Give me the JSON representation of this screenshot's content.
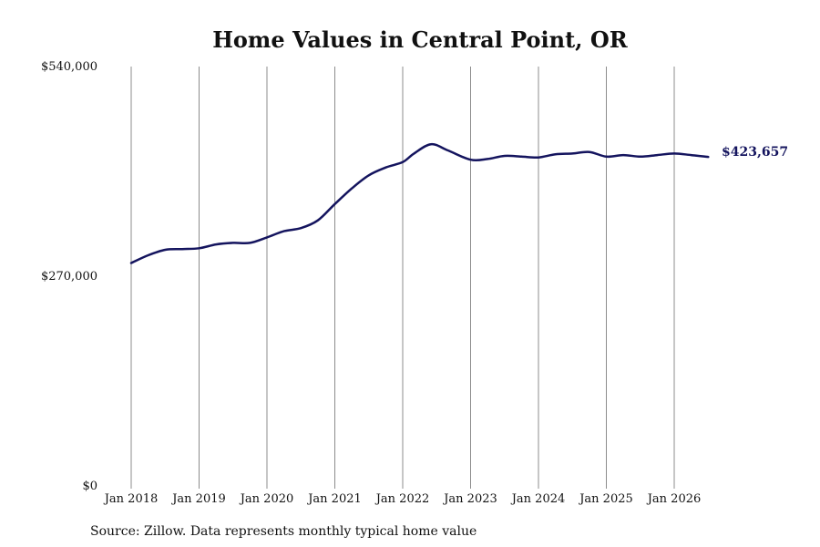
{
  "chart_data": {
    "type": "line",
    "title": "Home Values in Central Point, OR",
    "xlabel": "",
    "ylabel": "",
    "ylim": [
      0,
      540000
    ],
    "xlim": [
      "2018-01",
      "2026-07"
    ],
    "y_ticks": [
      0,
      270000,
      540000
    ],
    "y_tick_labels": [
      "$0",
      "$270,000",
      "$540,000"
    ],
    "x_ticks": [
      "2018-01",
      "2019-01",
      "2020-01",
      "2021-01",
      "2022-01",
      "2023-01",
      "2024-01",
      "2025-01",
      "2026-01"
    ],
    "x_tick_labels": [
      "Jan 2018",
      "Jan 2019",
      "Jan 2020",
      "Jan 2021",
      "Jan 2022",
      "Jan 2023",
      "Jan 2024",
      "Jan 2025",
      "Jan 2026"
    ],
    "grid": "vertical",
    "line_color": "#14145e",
    "end_label": "$423,657",
    "x": [
      "2018-01",
      "2018-04",
      "2018-07",
      "2018-10",
      "2019-01",
      "2019-04",
      "2019-07",
      "2019-10",
      "2020-01",
      "2020-04",
      "2020-07",
      "2020-10",
      "2021-01",
      "2021-04",
      "2021-07",
      "2021-10",
      "2022-01",
      "2022-03",
      "2022-06",
      "2022-09",
      "2023-01",
      "2023-04",
      "2023-07",
      "2023-10",
      "2024-01",
      "2024-04",
      "2024-07",
      "2024-10",
      "2025-01",
      "2025-04",
      "2025-07",
      "2025-10",
      "2026-01",
      "2026-04",
      "2026-07"
    ],
    "values": [
      287000,
      297000,
      304000,
      305000,
      306000,
      311000,
      313000,
      313000,
      320000,
      328000,
      332000,
      342000,
      363000,
      383000,
      400000,
      410000,
      417000,
      428000,
      440000,
      432000,
      420000,
      421000,
      425000,
      424000,
      423000,
      427000,
      428000,
      430000,
      424000,
      426000,
      424000,
      426000,
      428000,
      426000,
      423657
    ]
  },
  "source_note": "Source: Zillow. Data represents monthly typical home value"
}
